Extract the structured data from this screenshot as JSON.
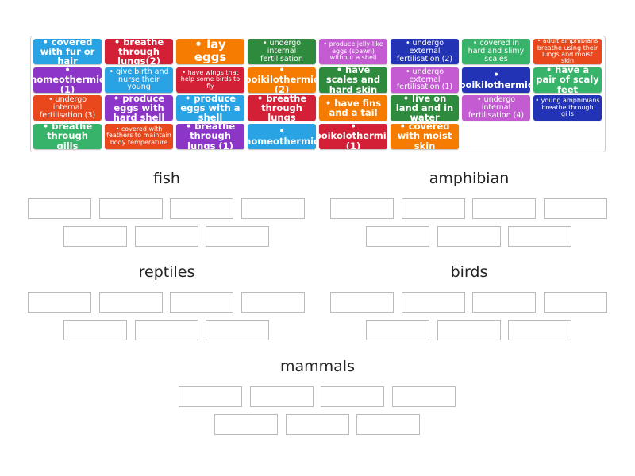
{
  "tiles": [
    {
      "text": "• covered with fur or hair",
      "color": "#29a3e3"
    },
    {
      "text": "• breathe through lungs(2)",
      "color": "#d32036"
    },
    {
      "text": "• lay eggs",
      "color": "#f57c00"
    },
    {
      "text": "• undergo internal fertilisation",
      "color": "#2e8a3c"
    },
    {
      "text": "• produce jelly-like eggs (spawn) without a shell",
      "color": "#c45bd3"
    },
    {
      "text": "• undergo external fertilisation (2)",
      "color": "#2233b5"
    },
    {
      "text": "• covered in hard and slimy scales",
      "color": "#38b36a"
    },
    {
      "text": "• adult amphibians breathe using their lungs and moist skin",
      "color": "#e8481c"
    },
    {
      "text": "• homeothermic (1)",
      "color": "#8c36c7"
    },
    {
      "text": "• give birth and nurse their young",
      "color": "#29a3e3"
    },
    {
      "text": "• have wings that help some birds to fly",
      "color": "#d32036"
    },
    {
      "text": "• poikilothermic (2)",
      "color": "#f57c00"
    },
    {
      "text": "• have scales and hard skin",
      "color": "#2e8a3c"
    },
    {
      "text": "• undergo external fertilisation (1)",
      "color": "#c45bd3"
    },
    {
      "text": "• poikilothermic",
      "color": "#2233b5"
    },
    {
      "text": "• have a pair of scaly feet",
      "color": "#38b36a"
    },
    {
      "text": "• undergo internal fertilisation (3)",
      "color": "#e8481c"
    },
    {
      "text": "• produce eggs with hard shell",
      "color": "#8c36c7"
    },
    {
      "text": "• produce eggs with a shell",
      "color": "#29a3e3"
    },
    {
      "text": "• breathe through lungs",
      "color": "#d32036"
    },
    {
      "text": "• have fins and a tail",
      "color": "#f57c00"
    },
    {
      "text": "• live on land and in water",
      "color": "#2e8a3c"
    },
    {
      "text": "• undergo internal fertilisation (4)",
      "color": "#c45bd3"
    },
    {
      "text": "• young amphibians breathe through gills",
      "color": "#2233b5"
    },
    {
      "text": "• breathe through gills",
      "color": "#38b36a"
    },
    {
      "text": "• covered with feathers to maintain body temperature",
      "color": "#e8481c"
    },
    {
      "text": "• breathe through lungs (1)",
      "color": "#8c36c7"
    },
    {
      "text": "• homeothermic",
      "color": "#29a3e3"
    },
    {
      "text": "• poikolothermic (1)",
      "color": "#d32036"
    },
    {
      "text": "• covered with moist skin",
      "color": "#f57c00"
    }
  ],
  "groups": [
    {
      "title": "fish"
    },
    {
      "title": "amphibian"
    },
    {
      "title": "reptiles"
    },
    {
      "title": "birds"
    },
    {
      "title": "mammals"
    }
  ]
}
